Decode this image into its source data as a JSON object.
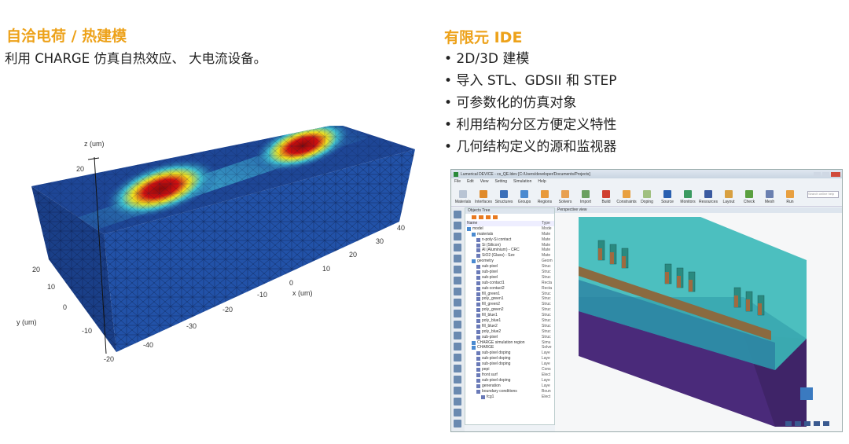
{
  "left": {
    "title": "自洽电荷 / 热建模",
    "subtitle": "利用 CHARGE 仿真自热效应、 大电流设备。",
    "plot": {
      "zlabel": "z (um)",
      "xlabel": "x (um)",
      "ylabel": "y (um)",
      "z_ticks": [
        "20"
      ],
      "x_ticks": [
        "40",
        "30",
        "20",
        "10",
        "0",
        "-10",
        "-20",
        "-30",
        "-40"
      ],
      "y_ticks": [
        "20",
        "10",
        "0",
        "-10",
        "-20"
      ]
    }
  },
  "right": {
    "title": "有限元 IDE",
    "bullets": [
      "• 2D/3D 建模",
      "• 导入 STL、GDSII 和 STEP",
      "• 可参数化的仿真对象",
      "• 利用结构分区方便定义特性",
      "• 几何结构定义的源和监视器"
    ]
  },
  "ide": {
    "window_title": "Lumerical DEVICE - cs_QE.ldev [C:/Users/developer/Documents/Projects]",
    "menu": [
      "File",
      "Edit",
      "View",
      "Setting",
      "Simulation",
      "Help"
    ],
    "toolbar": [
      "Materials",
      "Interfaces",
      "Structures",
      "Groups",
      "Regions",
      "Solvers",
      "Import",
      "Build",
      "Constraints",
      "Doping",
      "Source",
      "Monitors",
      "Resources",
      "Layout",
      "Check",
      "Mesh",
      "Run"
    ],
    "toolbar_colors": [
      "#b8c4d4",
      "#e08a2a",
      "#3a6fb8",
      "#4a8ad0",
      "#e89a3a",
      "#e8a050",
      "#6aa060",
      "#d04030",
      "#e8a040",
      "#a0c080",
      "#2a60b0",
      "#3a9a60",
      "#3a5aa0",
      "#d8a040",
      "#5aa040",
      "#6a80b0",
      "#e8a040"
    ],
    "search_placeholder": "Search online help",
    "objects_tree_title": "Objects Tree",
    "perspective_title": "Perspective view",
    "tree_header": {
      "name": "Name",
      "type": "Type"
    },
    "tree": [
      [
        "model",
        "Mode"
      ],
      [
        "materials",
        "Mate"
      ],
      [
        "n-poly-Si contact",
        "Mate"
      ],
      [
        "Si (Silicon)",
        "Mate"
      ],
      [
        "Al (Aluminium) - CRC",
        "Mate"
      ],
      [
        "SiO2 (Glass) - Sze",
        "Mate"
      ],
      [
        "geometry",
        "Geom"
      ],
      [
        "sub-pixel",
        "Struc"
      ],
      [
        "sub-pixel",
        "Struc"
      ],
      [
        "sub-pixel",
        "Struc"
      ],
      [
        "sub-contact1",
        "Recta"
      ],
      [
        "sub-contact2",
        "Recta"
      ],
      [
        "fill_green1",
        "Struc"
      ],
      [
        "poly_green1",
        "Struc"
      ],
      [
        "fill_green2",
        "Struc"
      ],
      [
        "poly_green2",
        "Struc"
      ],
      [
        "fill_blue1",
        "Struc"
      ],
      [
        "poly_blue1",
        "Struc"
      ],
      [
        "fill_blue2",
        "Struc"
      ],
      [
        "poly_blue2",
        "Struc"
      ],
      [
        "sub-pixel",
        "Struc"
      ],
      [
        "CHARGE simulation region",
        "Simu"
      ],
      [
        "CHARGE",
        "Solve"
      ],
      [
        "sub-pixel doping",
        "Laye"
      ],
      [
        "sub-pixel doping",
        "Laye"
      ],
      [
        "sub-pixel doping",
        "Laye"
      ],
      [
        "pepi",
        "Cons"
      ],
      [
        "front surf",
        "Elect"
      ],
      [
        "sub-pixel doping",
        "Laye"
      ],
      [
        "generation",
        "Laye"
      ],
      [
        "boundary conditions",
        "Boun"
      ],
      [
        "fcg1",
        "Elect"
      ]
    ]
  }
}
